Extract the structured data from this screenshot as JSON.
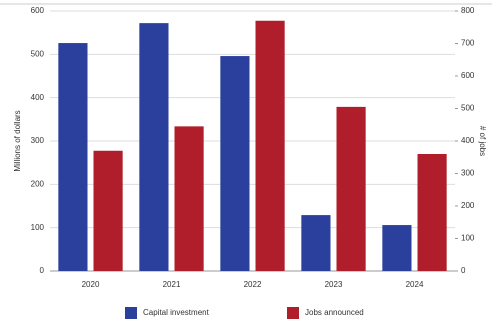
{
  "chart_data": {
    "type": "bar",
    "categories": [
      "2020",
      "2021",
      "2022",
      "2023",
      "2024"
    ],
    "series": [
      {
        "name": "Capital investment",
        "color": "#2b3f9c",
        "values": [
          526,
          572,
          496,
          129,
          106
        ]
      },
      {
        "name": "Jobs announced",
        "color": "#b01e2b",
        "axis": "y2",
        "values": [
          370,
          445,
          770,
          505,
          360
        ]
      }
    ],
    "ylabel": "Millions of dollars",
    "y2label": "# of jobs",
    "ylim": [
      0,
      600
    ],
    "yticks": [
      0,
      100,
      200,
      300,
      400,
      500,
      600
    ],
    "y2lim": [
      0,
      800
    ],
    "y2ticks": [
      0,
      100,
      200,
      300,
      400,
      500,
      600,
      700,
      800
    ],
    "grid": true,
    "legend": "bottom"
  }
}
